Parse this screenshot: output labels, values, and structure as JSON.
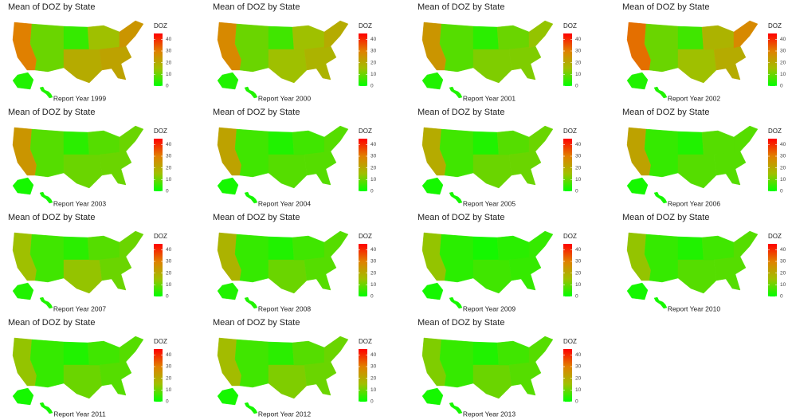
{
  "title": "Mean of DOZ by State",
  "legend": {
    "title": "DOZ",
    "ticks": [
      0,
      10,
      20,
      30,
      40
    ],
    "range": [
      0,
      45
    ],
    "colors": [
      "#00ff00",
      "#9fc000",
      "#e08000",
      "#ff0000"
    ]
  },
  "panels": [
    {
      "subtitle": "Report Year 1999",
      "values": [
        30,
        10,
        5,
        20,
        15,
        22,
        25,
        3,
        3
      ]
    },
    {
      "subtitle": "Report Year 2000",
      "values": [
        28,
        10,
        6,
        15,
        15,
        18,
        20,
        3,
        3
      ]
    },
    {
      "subtitle": "Report Year 2001",
      "values": [
        25,
        8,
        4,
        12,
        10,
        12,
        14,
        3,
        3
      ]
    },
    {
      "subtitle": "Report Year 2002",
      "values": [
        32,
        10,
        6,
        15,
        18,
        20,
        28,
        3,
        3
      ]
    },
    {
      "subtitle": "Report Year 2003",
      "values": [
        25,
        8,
        4,
        10,
        8,
        10,
        10,
        2,
        2
      ]
    },
    {
      "subtitle": "Report Year 2004",
      "values": [
        22,
        6,
        3,
        8,
        6,
        8,
        8,
        2,
        2
      ]
    },
    {
      "subtitle": "Report Year 2005",
      "values": [
        20,
        6,
        3,
        10,
        8,
        10,
        10,
        2,
        2
      ]
    },
    {
      "subtitle": "Report Year 2006",
      "values": [
        22,
        5,
        3,
        8,
        8,
        8,
        8,
        2,
        2
      ]
    },
    {
      "subtitle": "Report Year 2007",
      "values": [
        15,
        6,
        4,
        14,
        8,
        10,
        10,
        3,
        3
      ]
    },
    {
      "subtitle": "Report Year 2008",
      "values": [
        18,
        5,
        3,
        10,
        6,
        8,
        8,
        3,
        3
      ]
    },
    {
      "subtitle": "Report Year 2009",
      "values": [
        14,
        4,
        2,
        6,
        4,
        5,
        5,
        2,
        2
      ]
    },
    {
      "subtitle": "Report Year 2010",
      "values": [
        14,
        5,
        3,
        8,
        6,
        8,
        8,
        2,
        2
      ]
    },
    {
      "subtitle": "Report Year 2011",
      "values": [
        14,
        5,
        3,
        10,
        6,
        8,
        8,
        2,
        2
      ]
    },
    {
      "subtitle": "Report Year 2012",
      "values": [
        16,
        6,
        4,
        12,
        8,
        10,
        10,
        2,
        2
      ]
    },
    {
      "subtitle": "Report Year 2013",
      "values": [
        12,
        5,
        3,
        10,
        6,
        8,
        8,
        2,
        2
      ]
    }
  ]
}
